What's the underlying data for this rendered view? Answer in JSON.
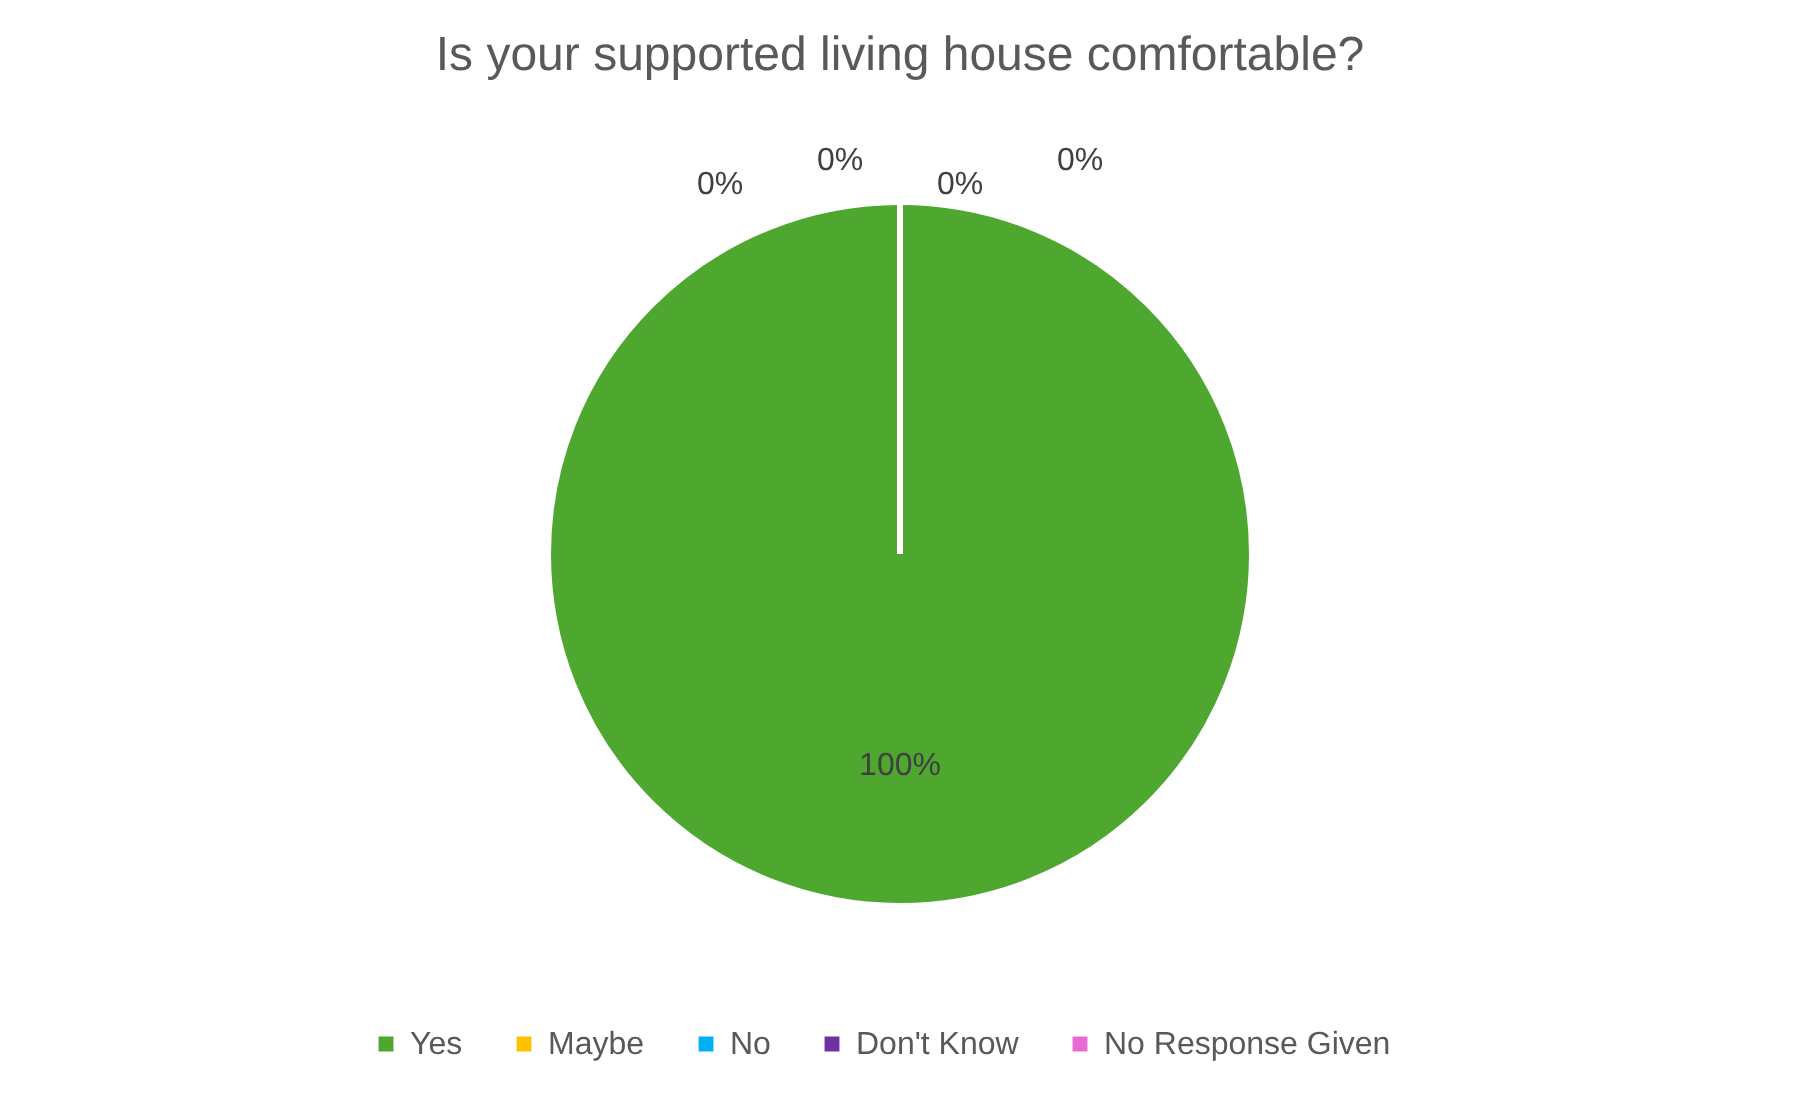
{
  "chart_data": {
    "type": "pie",
    "title": "Is your supported living house comfortable?",
    "categories": [
      "Yes",
      "Maybe",
      "No",
      "Don't Know",
      "No Response Given"
    ],
    "values": [
      100,
      0,
      0,
      0,
      0
    ],
    "colors": [
      "#4ea72e",
      "#ffc000",
      "#00b0f0",
      "#7030a0",
      "#e96ad2"
    ],
    "value_labels": [
      "100%",
      "0%",
      "0%",
      "0%",
      "0%"
    ],
    "legend": "bottom"
  }
}
